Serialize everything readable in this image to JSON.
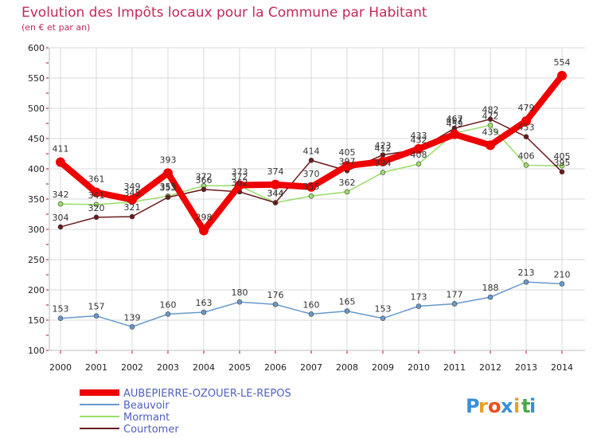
{
  "chart_data": {
    "type": "line",
    "title": "Evolution des Impôts locaux pour la Commune par Habitant",
    "subtitle": "(en € et par an)",
    "xlabel": "",
    "ylabel": "",
    "ylim": [
      100,
      600
    ],
    "yticks": [
      100,
      150,
      200,
      250,
      300,
      350,
      400,
      450,
      500,
      550,
      600
    ],
    "categories": [
      "2000",
      "2001",
      "2002",
      "2003",
      "2004",
      "2005",
      "2006",
      "2007",
      "2008",
      "2009",
      "2010",
      "2011",
      "2012",
      "2013",
      "2014"
    ],
    "grid": true,
    "legend_position": "bottom-left",
    "series": [
      {
        "name": "AUBEPIERRE-OZOUER-LE-REPOS",
        "color": "#ee0000",
        "values": [
          411,
          361,
          349,
          393,
          298,
          373,
          374,
          370,
          405,
          412,
          433,
          457,
          439,
          479,
          554
        ],
        "bold": true
      },
      {
        "name": "Beauvoir",
        "color": "#6699cc",
        "values": [
          153,
          157,
          139,
          160,
          163,
          180,
          176,
          160,
          165,
          153,
          173,
          177,
          188,
          213,
          210
        ]
      },
      {
        "name": "Mormant",
        "color": "#99dd66",
        "values": [
          342,
          341,
          345,
          355,
          372,
          372,
          344,
          355,
          362,
          394,
          408,
          459,
          472,
          406,
          405
        ]
      },
      {
        "name": "Courtomer",
        "color": "#6b1a1a",
        "values": [
          304,
          320,
          321,
          353,
          366,
          362,
          344,
          414,
          397,
          423,
          432,
          467,
          482,
          453,
          395
        ]
      }
    ]
  },
  "brand": {
    "text": "Proxiti",
    "letters": [
      "P",
      "r",
      "o",
      "x",
      "i",
      "t",
      "i"
    ],
    "colors": [
      "#3a8fd8",
      "#e8a020",
      "#e85020",
      "#3a8fd8",
      "#e8a020",
      "#48a848",
      "#3a8fd8"
    ]
  },
  "colors": {
    "title": "#c3285a",
    "axis_ticks": "#cc0000"
  }
}
